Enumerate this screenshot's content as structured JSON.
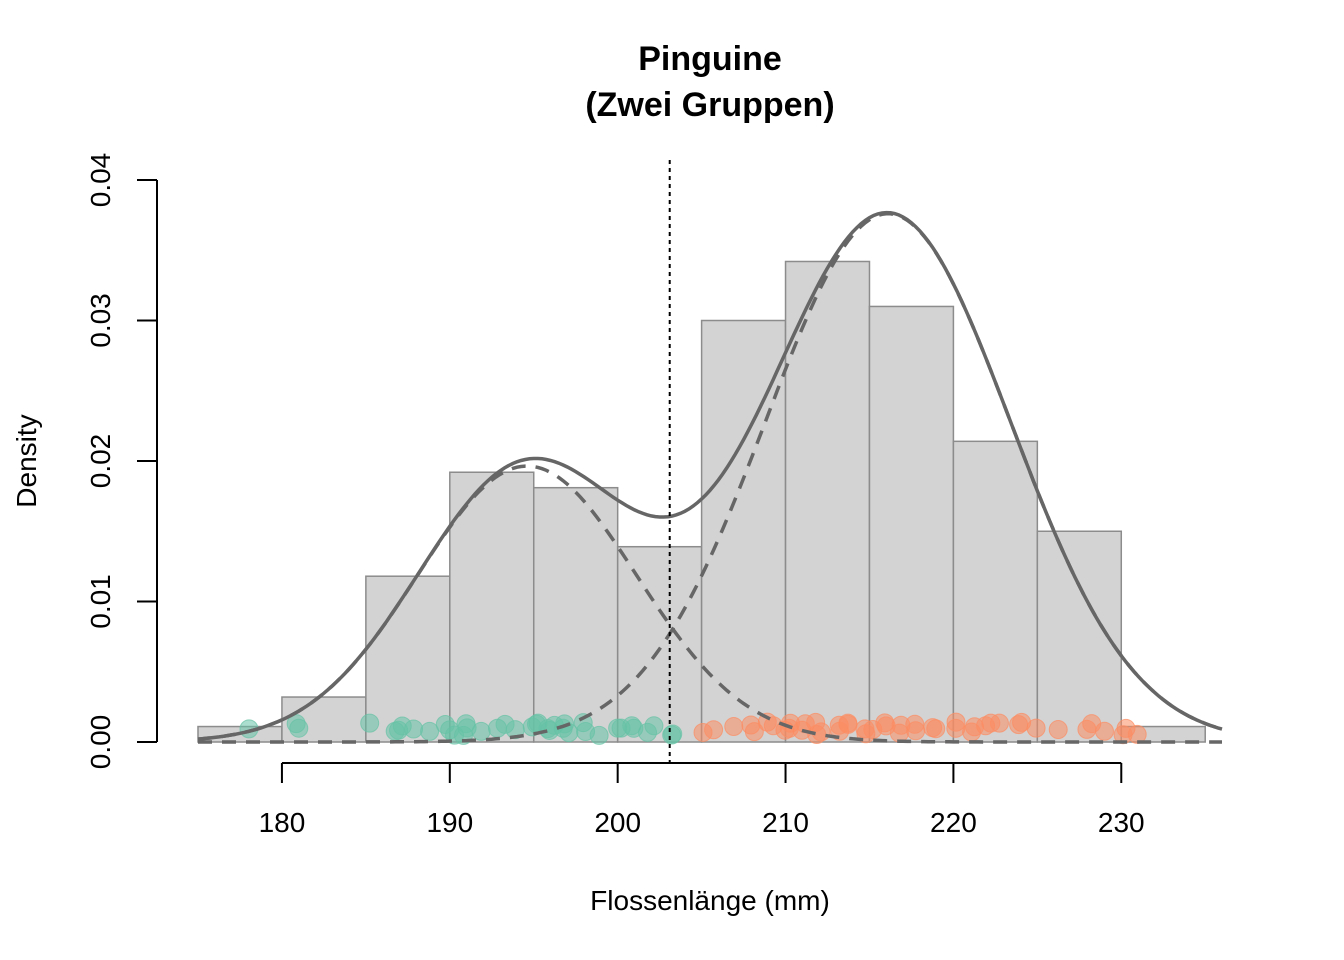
{
  "chart_data": {
    "type": "bar",
    "title": "Pinguine",
    "subtitle": "(Zwei Gruppen)",
    "xlabel": "Flossenlänge (mm)",
    "ylabel": "Density",
    "xlim": [
      175,
      236
    ],
    "ylim": [
      0,
      0.04
    ],
    "x_ticks": [
      "180",
      "190",
      "200",
      "210",
      "220",
      "230"
    ],
    "y_ticks": [
      "0.00",
      "0.01",
      "0.02",
      "0.03",
      "0.04"
    ],
    "histogram": {
      "bin_edges": [
        175,
        180,
        185,
        190,
        195,
        200,
        205,
        210,
        215,
        220,
        225,
        230,
        235
      ],
      "values": [
        0.0011,
        0.0032,
        0.0118,
        0.0192,
        0.0181,
        0.0139,
        0.03,
        0.0342,
        0.031,
        0.0214,
        0.015,
        0.0011
      ],
      "fill_color": "#d3d3d3",
      "stroke_color": "#8c8c8c"
    },
    "cut_line_x": 203.1,
    "components": [
      {
        "mean": 194.6,
        "sd": 6.5,
        "weight": 0.32
      },
      {
        "mean": 216.1,
        "sd": 7.3,
        "weight": 0.688
      }
    ],
    "curve_color": "#666666",
    "groups": [
      {
        "color": "#66c2a5",
        "x": [
          178,
          181,
          181,
          185,
          187,
          187,
          187,
          188,
          189,
          190,
          190,
          190,
          191,
          191,
          191,
          192,
          193,
          193,
          194,
          195,
          195,
          195,
          196,
          196,
          196,
          197,
          197,
          197,
          198,
          198,
          199,
          200,
          200,
          201,
          201,
          202,
          202,
          203,
          203
        ]
      },
      {
        "color": "#fc8d62",
        "x": [
          205,
          206,
          207,
          208,
          208,
          209,
          209,
          210,
          210,
          210,
          211,
          211,
          212,
          212,
          212,
          213,
          213,
          214,
          214,
          215,
          215,
          215,
          216,
          216,
          217,
          217,
          218,
          218,
          219,
          219,
          220,
          220,
          221,
          221,
          222,
          222,
          223,
          224,
          224,
          225,
          226,
          228,
          228,
          229,
          230,
          230,
          231
        ]
      }
    ]
  }
}
